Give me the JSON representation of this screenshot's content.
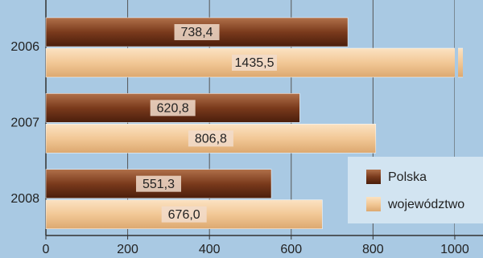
{
  "chart_data": {
    "type": "bar",
    "orientation": "horizontal",
    "categories": [
      "2006",
      "2007",
      "2008"
    ],
    "series": [
      {
        "name": "Polska",
        "color": "#7a3a1c",
        "values": [
          738.4,
          620.8,
          551.3
        ],
        "value_labels": [
          "738,4",
          "620,8",
          "551,3"
        ]
      },
      {
        "name": "województwo",
        "color": "#f2c896",
        "values": [
          1435.5,
          806.8,
          676.0
        ],
        "value_labels": [
          "1435,5",
          "806,8",
          "676,0"
        ]
      }
    ],
    "xlim": [
      0,
      1069
    ],
    "xticks": [
      0,
      200,
      400,
      600,
      800,
      1000
    ],
    "grid": true,
    "legend": "lower right"
  }
}
